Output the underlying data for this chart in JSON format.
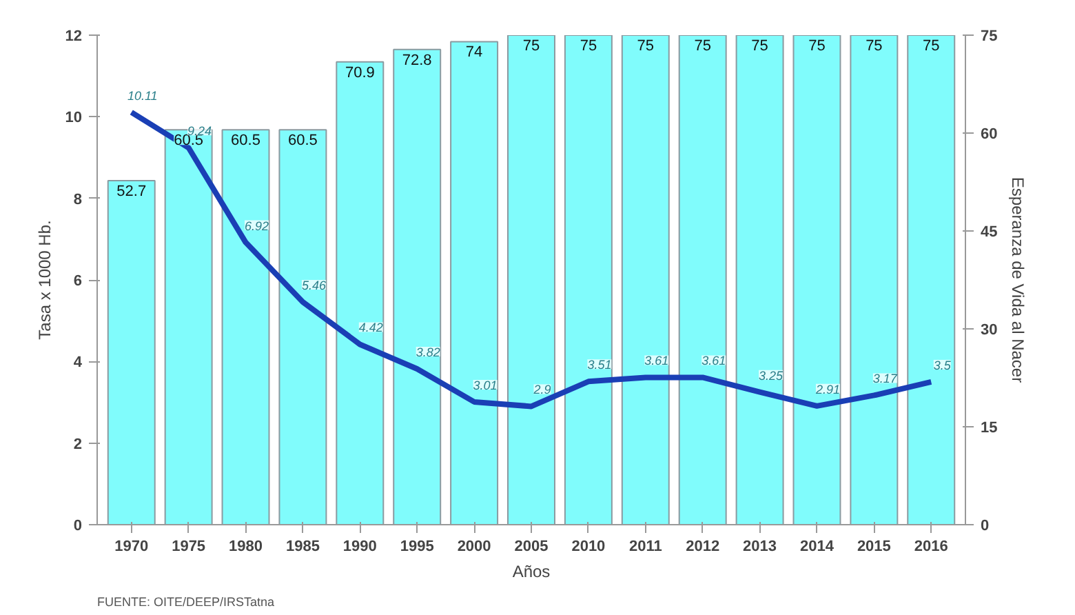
{
  "chart_data": {
    "type": "bar",
    "categories": [
      "1970",
      "1975",
      "1980",
      "1985",
      "1990",
      "1995",
      "2000",
      "2005",
      "2010",
      "2011",
      "2012",
      "2013",
      "2014",
      "2015",
      "2016"
    ],
    "xlabel": "Años",
    "ylabel": "Tasa x 1000 Hb.",
    "y2label": "Esperanza de Vida al Nacer",
    "series": [
      {
        "type": "bar",
        "axis": "y2",
        "color": "#80fcfc",
        "values": [
          52.7,
          60.5,
          60.5,
          60.5,
          70.9,
          72.8,
          74,
          75,
          75,
          75,
          75,
          75,
          75,
          75,
          75
        ]
      },
      {
        "type": "line",
        "axis": "y",
        "color": "#1a3fb5",
        "values": [
          10.11,
          9.24,
          6.92,
          5.46,
          4.42,
          3.82,
          3.01,
          2.9,
          3.51,
          3.61,
          3.61,
          3.25,
          2.91,
          3.17,
          3.5
        ]
      }
    ],
    "ylim": [
      0,
      12
    ],
    "yticks": [
      0,
      2,
      4,
      6,
      8,
      10,
      12
    ],
    "y2lim": [
      0,
      75
    ],
    "y2ticks": [
      0,
      15,
      30,
      45,
      60,
      75
    ],
    "data_labels": true,
    "grid": false,
    "marker": "none",
    "line_style": "solid",
    "annotations": [
      "FUENTE: OITE/DEEP/IRSTatna"
    ]
  }
}
